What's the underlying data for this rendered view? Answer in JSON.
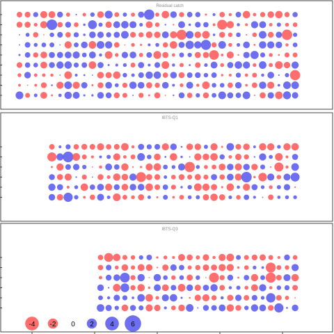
{
  "chart_data": [
    {
      "type": "scatter",
      "subtype": "bubble-residual-matrix",
      "title": "Residual catch",
      "rows": 9,
      "cols": 35,
      "first_col": 0,
      "seed": 11,
      "positive_color": "#5555ee",
      "negative_color": "#ff5555",
      "value_range": [
        -4,
        6
      ]
    },
    {
      "type": "scatter",
      "subtype": "bubble-residual-matrix",
      "title": "IBTS-Q1",
      "rows": 6,
      "cols": 31,
      "first_col": 4,
      "seed": 23,
      "positive_color": "#5555ee",
      "negative_color": "#ff5555",
      "value_range": [
        -4,
        6
      ]
    },
    {
      "type": "scatter",
      "subtype": "bubble-residual-matrix",
      "title": "IBTS-Q3",
      "rows": 6,
      "cols": 25,
      "first_col": 10,
      "seed": 37,
      "positive_color": "#5555ee",
      "negative_color": "#ff5555",
      "value_range": [
        -4,
        6
      ]
    }
  ],
  "legend": {
    "values": [
      -4,
      -2,
      0,
      2,
      4,
      6
    ],
    "labels": [
      "-4",
      "-2",
      "0",
      "2",
      "4",
      "6"
    ]
  }
}
